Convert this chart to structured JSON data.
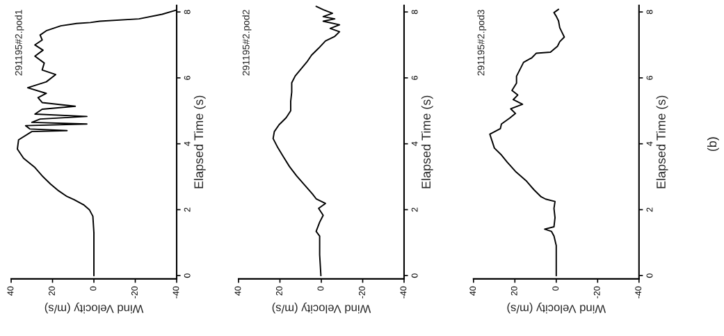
{
  "chart_data": [
    {
      "type": "line",
      "title": "291195#2.pod1",
      "xlim": [
        40,
        -40
      ],
      "xticks": [
        40,
        20,
        0,
        -20,
        -40
      ],
      "ylim": [
        -0.1,
        8.2
      ],
      "yticks": [
        0,
        2,
        4,
        6,
        8
      ],
      "xlabel": "Wind Velocity (m/s)",
      "ylabel": "Elapsed Time (s)",
      "orientation": "horizontal",
      "color": "#000000",
      "x": [
        0,
        1.3,
        1.8,
        2.0,
        2.15,
        2.3,
        2.4,
        2.57,
        2.78,
        3.0,
        3.28,
        3.56,
        3.84,
        4.12,
        4.37,
        4.4,
        4.45,
        4.55,
        4.6,
        4.65,
        4.75,
        4.83,
        4.9,
        5.05,
        5.14,
        5.25,
        5.4,
        5.53,
        5.7,
        5.88,
        6.1,
        6.24,
        6.45,
        6.66,
        6.84,
        7.0,
        7.15,
        7.3,
        7.43,
        7.58,
        7.65,
        7.68,
        7.72,
        7.79,
        7.93,
        8.06
      ],
      "values": [
        0,
        0,
        0.5,
        2.2,
        5,
        9.5,
        13,
        17,
        21,
        24.6,
        28.5,
        34,
        37,
        36.4,
        30,
        13,
        31,
        33,
        3.4,
        30,
        26,
        3.4,
        28.5,
        25,
        9,
        25,
        27,
        23,
        32,
        23,
        18.5,
        25,
        24,
        28.5,
        24.6,
        28.5,
        25,
        26,
        23,
        16,
        8.4,
        1.7,
        -2.8,
        -21.8,
        -33,
        -40
      ]
    },
    {
      "type": "line",
      "title": "291195#2.pod2",
      "xlim": [
        40,
        -40
      ],
      "xticks": [
        40,
        20,
        0,
        -20,
        -40
      ],
      "ylim": [
        -0.1,
        8.2
      ],
      "yticks": [
        0,
        2,
        4,
        6,
        8
      ],
      "xlabel": "Wind Velocity (m/s)",
      "ylabel": "Elapsed Time (s)",
      "orientation": "horizontal",
      "color": "#000000",
      "x": [
        0,
        0.63,
        1.2,
        1.34,
        1.62,
        1.83,
        2.04,
        2.19,
        2.33,
        2.47,
        2.75,
        3.03,
        3.31,
        3.59,
        3.88,
        4.16,
        4.37,
        4.58,
        4.79,
        5.0,
        5.29,
        5.57,
        5.85,
        6.06,
        6.27,
        6.48,
        6.69,
        6.9,
        7.12,
        7.26,
        7.4,
        7.5,
        7.61,
        7.72,
        7.79,
        7.86,
        7.96,
        8.07,
        8.17
      ],
      "values": [
        0.2,
        0.8,
        0.8,
        2.5,
        0.8,
        -0.9,
        1.3,
        -2,
        2.5,
        4.2,
        8.1,
        12,
        15.4,
        18.2,
        21,
        23.3,
        22.7,
        20.4,
        17,
        14.8,
        14.8,
        14.3,
        14.3,
        12.6,
        9.8,
        7,
        4.7,
        1.3,
        -2,
        -6.5,
        -8.8,
        -4.3,
        -8.8,
        -0.9,
        -6.5,
        -0.9,
        -5.4,
        -0.9,
        2.5
      ]
    },
    {
      "type": "line",
      "title": "291195#2.pod3",
      "xlim": [
        40,
        -40
      ],
      "xticks": [
        40,
        20,
        0,
        -20,
        -40
      ],
      "ylim": [
        -0.1,
        8.2
      ],
      "yticks": [
        0,
        2,
        4,
        6,
        8
      ],
      "xlabel": "Wind Velocity (m/s)",
      "ylabel": "Elapsed Time (s)",
      "orientation": "horizontal",
      "color": "#000000",
      "annotations": [
        "(b)"
      ],
      "x": [
        0,
        0.91,
        1.2,
        1.34,
        1.41,
        1.48,
        1.76,
        2.04,
        2.25,
        2.32,
        2.39,
        2.6,
        2.88,
        3.16,
        3.44,
        3.66,
        3.87,
        4.08,
        4.29,
        4.46,
        4.6,
        4.78,
        4.92,
        5.06,
        5.2,
        5.34,
        5.48,
        5.62,
        5.84,
        6.05,
        6.26,
        6.47,
        6.61,
        6.75,
        6.78,
        6.96,
        7.1,
        7.24,
        7.38,
        7.52,
        7.73,
        7.87,
        7.98,
        8.08
      ],
      "values": [
        0,
        0,
        1.1,
        2.3,
        5.6,
        1.1,
        0.6,
        1.1,
        0.6,
        5.1,
        7.3,
        10.7,
        14.6,
        19.7,
        23.7,
        26.5,
        29.9,
        31,
        32.1,
        27,
        26.5,
        22.5,
        19.7,
        22,
        16.3,
        20.8,
        18.6,
        21.4,
        19.2,
        19.2,
        17.5,
        15.8,
        11.8,
        9.6,
        2.8,
        -0.6,
        -1.7,
        -3.9,
        -2.8,
        -1.7,
        -1.1,
        0,
        1.1,
        -1.1
      ]
    }
  ]
}
